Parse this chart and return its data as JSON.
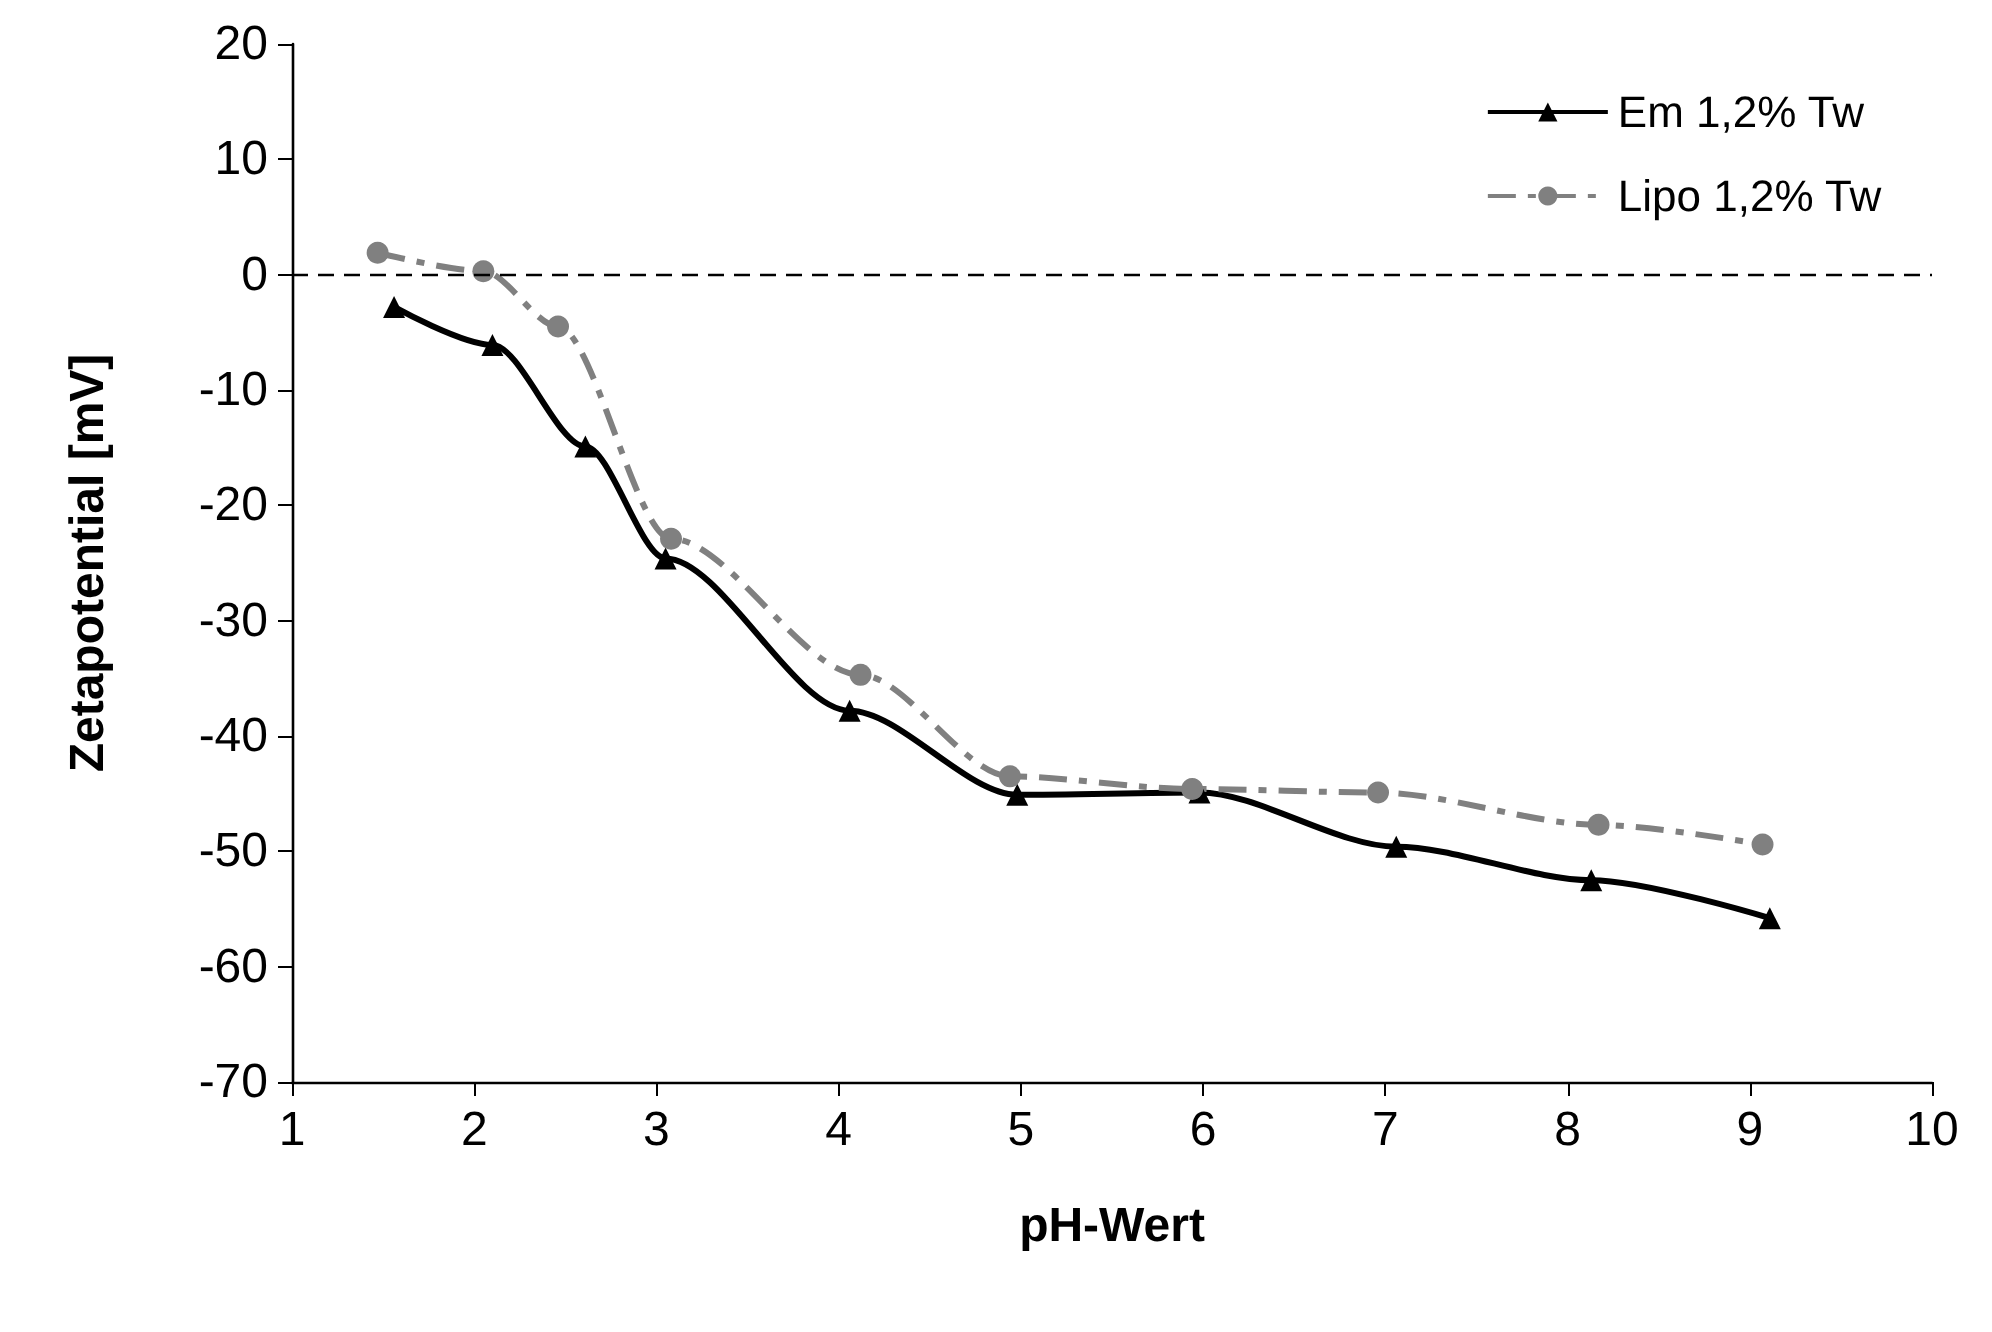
{
  "chart_data": {
    "type": "line",
    "xlabel": "pH-Wert",
    "ylabel": "Zetapotential [mV]",
    "xlim": [
      1,
      10
    ],
    "xticks": [
      1,
      2,
      3,
      4,
      5,
      6,
      7,
      8,
      9,
      10
    ],
    "ylim": [
      -70,
      20
    ],
    "yticks": [
      -70,
      -60,
      -50,
      -40,
      -30,
      -20,
      -10,
      0,
      10,
      20
    ],
    "grid": false,
    "legend": "top right",
    "series": [
      {
        "name": "Em 1,2% Tw",
        "color": "#000000",
        "marker": "triangle",
        "line_style": "solid",
        "x": [
          1.56,
          2.1,
          2.61,
          3.05,
          4.06,
          4.98,
          5.98,
          7.06,
          8.13,
          9.11
        ],
        "values": [
          -2.8,
          -6.1,
          -14.9,
          -24.6,
          -37.8,
          -45.1,
          -44.9,
          -49.6,
          -52.5,
          -55.8
        ]
      },
      {
        "name": "Lipo 1,2% Tw",
        "color": "#808080",
        "marker": "circle",
        "line_style": "dashed",
        "x": [
          1.47,
          2.05,
          2.46,
          3.08,
          4.12,
          4.94,
          5.94,
          6.96,
          8.17,
          9.07
        ],
        "values": [
          1.9,
          0.3,
          -4.5,
          -22.9,
          -34.7,
          -43.5,
          -44.6,
          -44.9,
          -47.7,
          -49.4
        ]
      }
    ],
    "ref_lines": [
      {
        "axis": "y",
        "value": 0,
        "color": "#000000",
        "line_style": "dashed"
      }
    ]
  }
}
